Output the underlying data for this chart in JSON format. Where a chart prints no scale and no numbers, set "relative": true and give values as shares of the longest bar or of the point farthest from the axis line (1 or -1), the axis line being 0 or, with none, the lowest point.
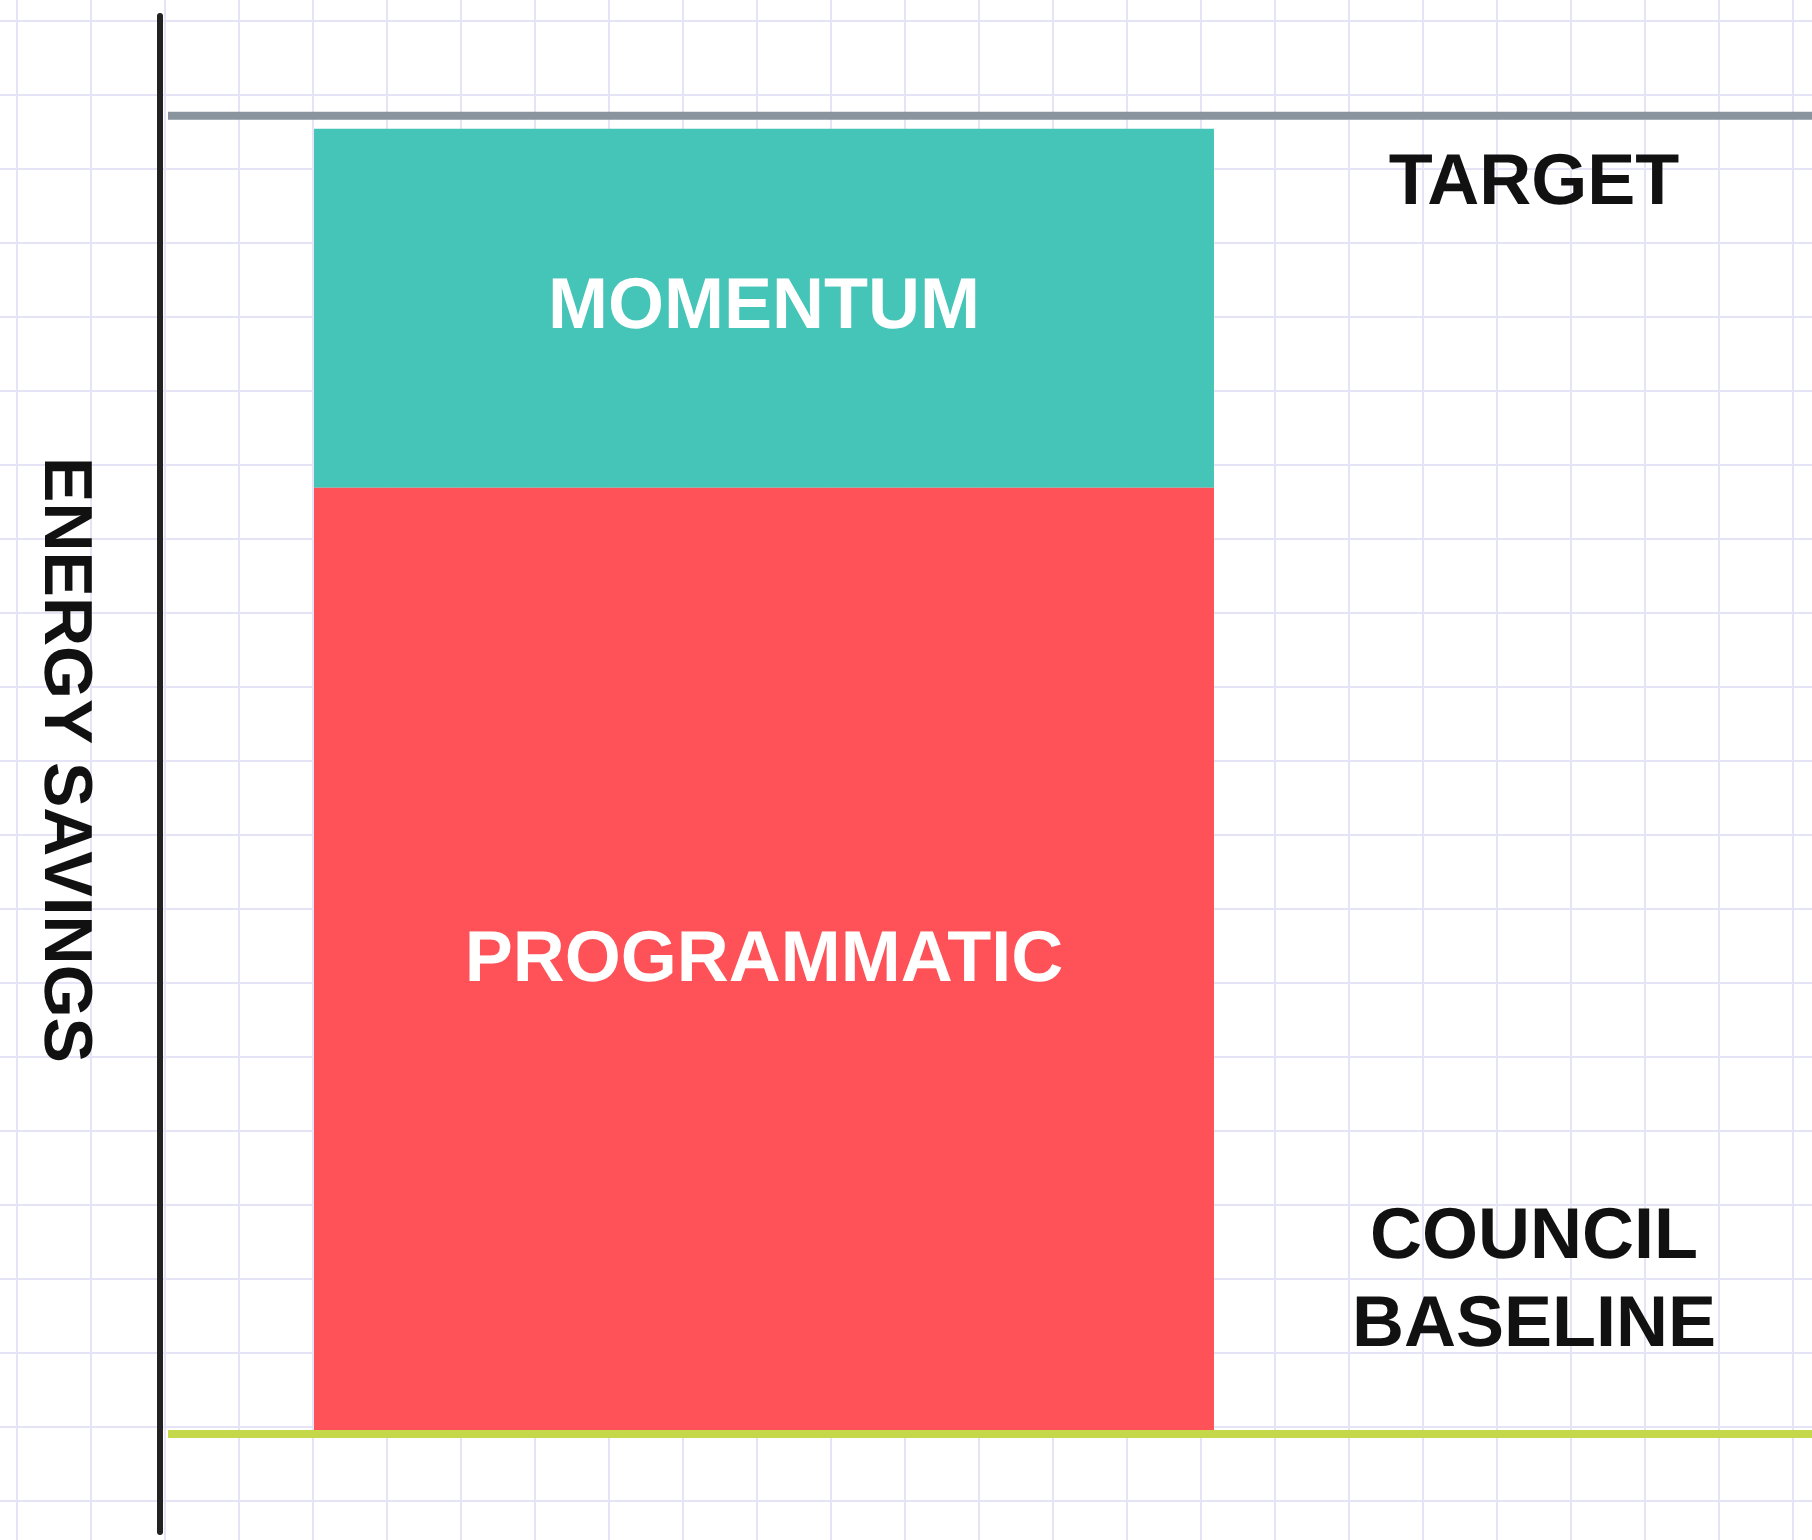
{
  "chart_data": {
    "type": "bar",
    "relative": true,
    "stacked": true,
    "categories": [
      null
    ],
    "ylabel": "ENERGY SAVINGS",
    "legend": false,
    "series": [
      {
        "name": "PROGRAMMATIC",
        "color": "#fe5258",
        "values": [
          0.725
        ]
      },
      {
        "name": "MOMENTUM",
        "color": "#45c4b8",
        "values": [
          0.275
        ]
      }
    ],
    "ref_lines": [
      {
        "axis": "y",
        "value": 1.01,
        "label": "TARGET",
        "color": "#8a949e"
      },
      {
        "axis": "y",
        "value": 0,
        "label": "COUNCIL BASELINE",
        "color": "#c5d84a"
      }
    ]
  }
}
